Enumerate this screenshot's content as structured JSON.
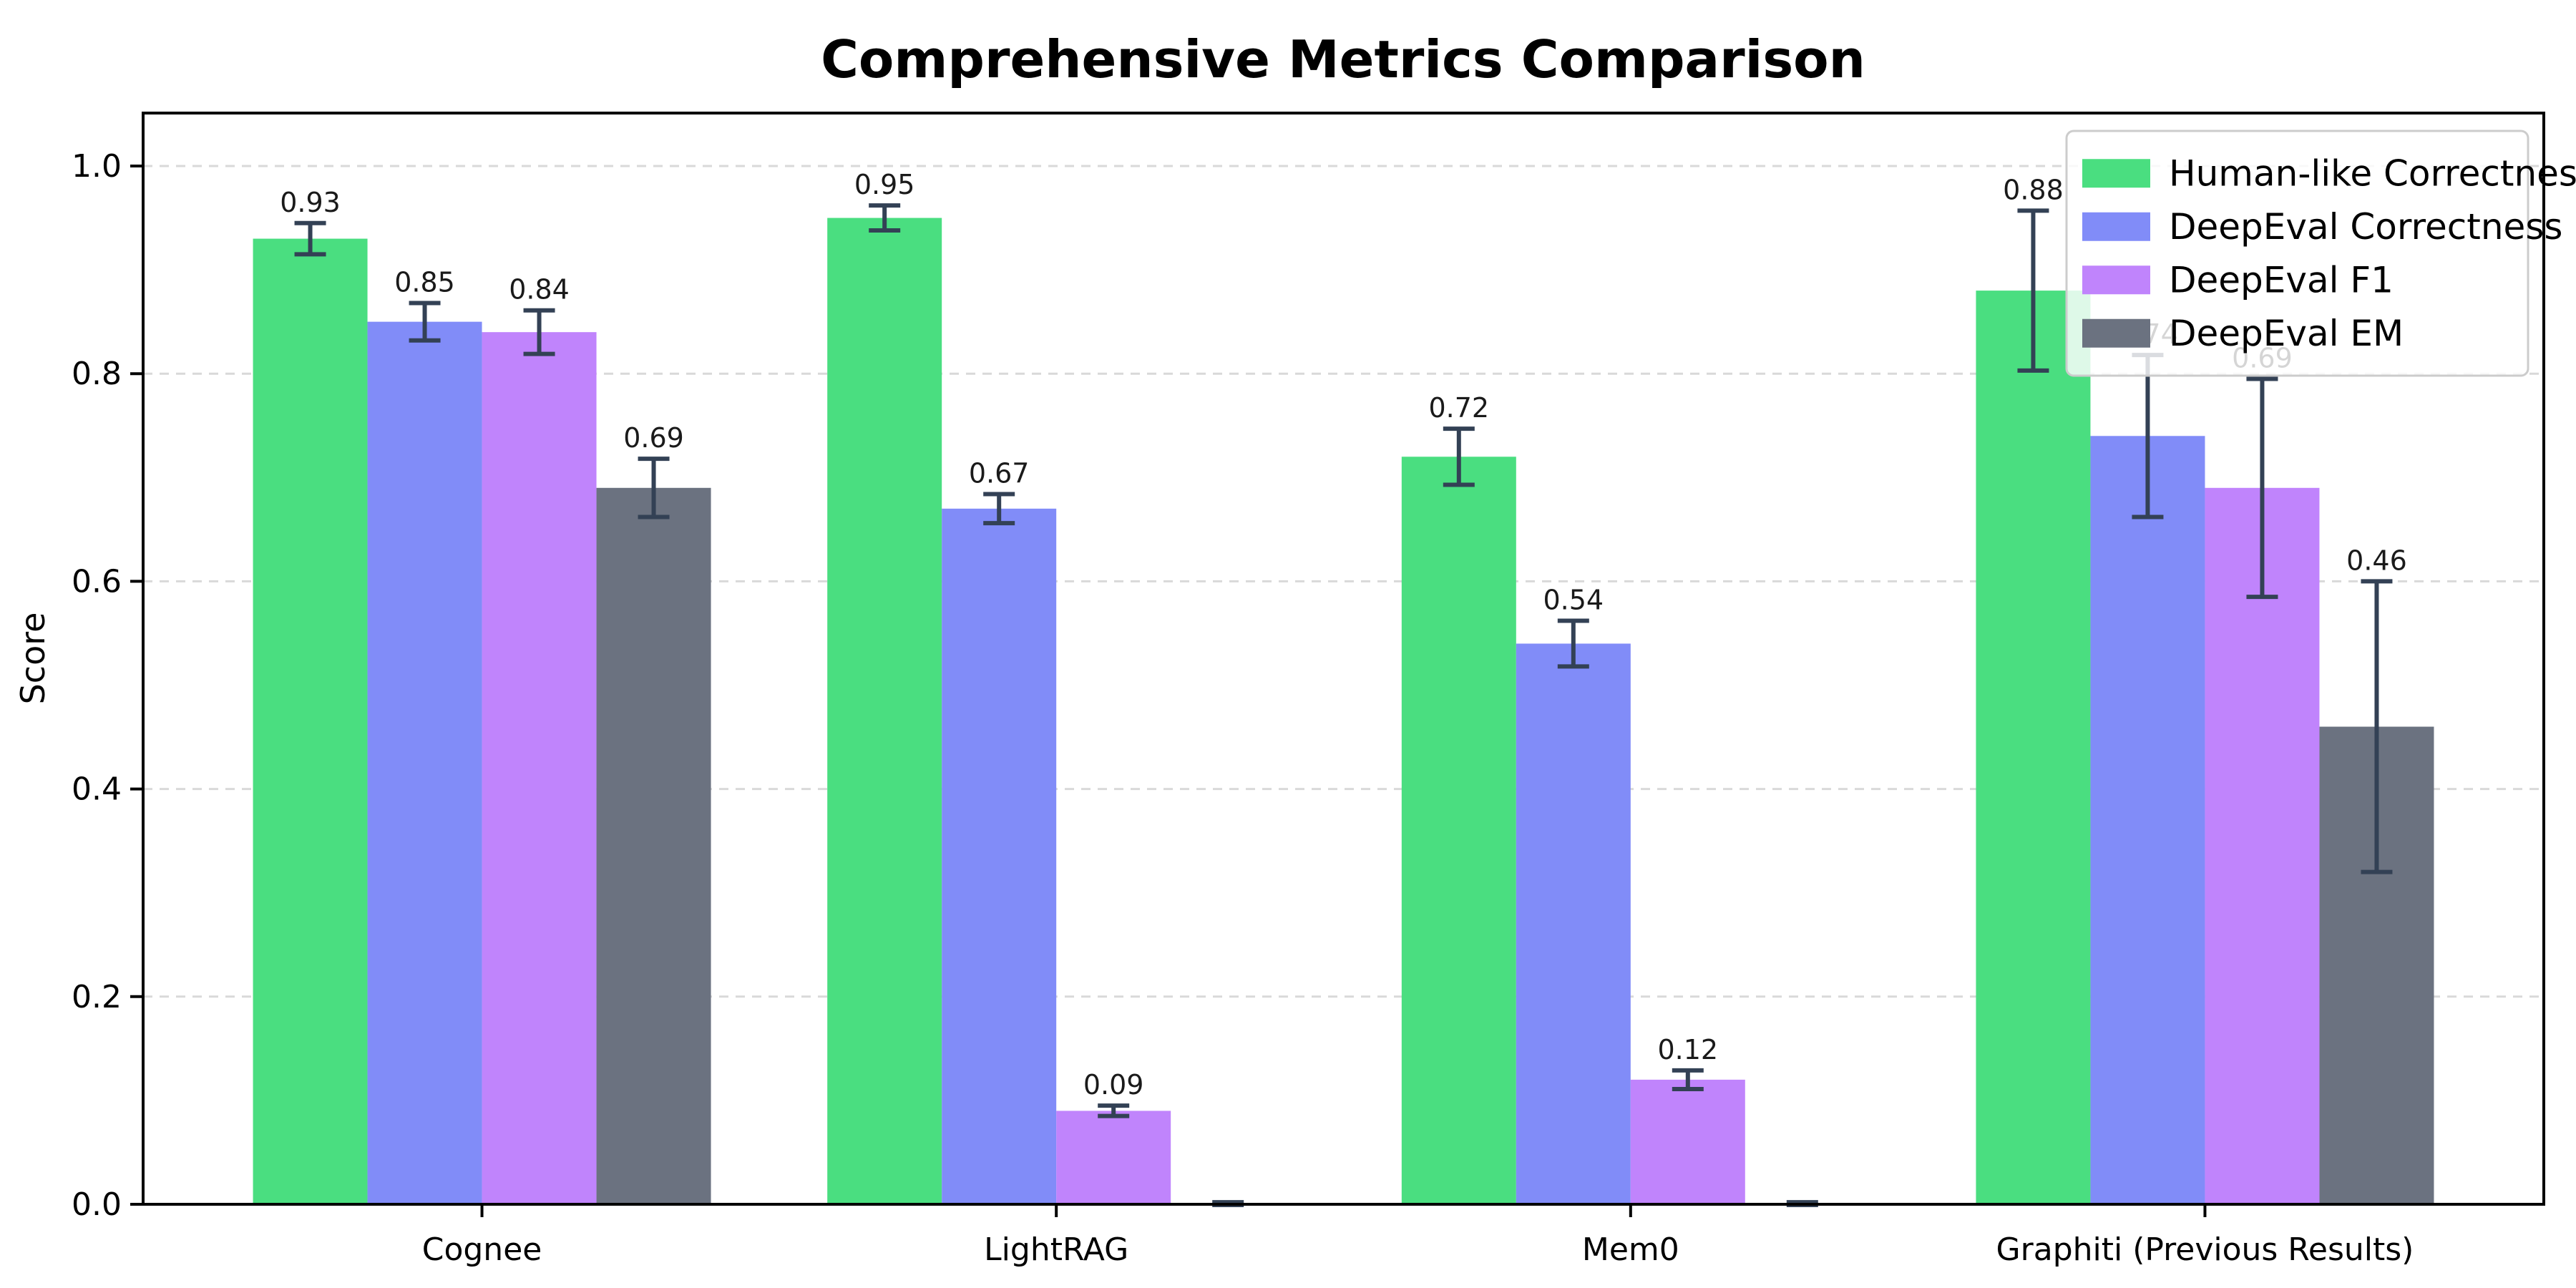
{
  "chart_data": {
    "type": "bar",
    "title": "Comprehensive Metrics Comparison",
    "xlabel": "",
    "ylabel": "Score",
    "categories": [
      "Cognee",
      "LightRAG",
      "Mem0",
      "Graphiti (Previous Results)"
    ],
    "series": [
      {
        "name": "Human-like Correctness",
        "color": "#4ade80",
        "values": [
          0.93,
          0.95,
          0.72,
          0.88
        ],
        "errors": [
          0.015,
          0.012,
          0.027,
          0.077
        ],
        "labels": [
          "0.93",
          "0.95",
          "0.72",
          "0.88"
        ]
      },
      {
        "name": "DeepEval Correctness",
        "color": "#818cf8",
        "values": [
          0.85,
          0.67,
          0.54,
          0.74
        ],
        "errors": [
          0.018,
          0.014,
          0.022,
          0.078
        ],
        "labels": [
          "0.85",
          "0.67",
          "0.54",
          "0.74"
        ]
      },
      {
        "name": "DeepEval F1",
        "color": "#c084fc",
        "values": [
          0.84,
          0.09,
          0.12,
          0.69
        ],
        "errors": [
          0.021,
          0.005,
          0.009,
          0.105
        ],
        "labels": [
          "0.84",
          "0.09",
          "0.12",
          "0.69"
        ]
      },
      {
        "name": "DeepEval EM",
        "color": "#6b7280",
        "values": [
          0.69,
          0.0,
          0.0,
          0.46
        ],
        "errors": [
          0.028,
          0.002,
          0.002,
          0.14
        ],
        "labels": [
          "0.69",
          null,
          null,
          "0.46"
        ]
      }
    ],
    "yticks": [
      "0.0",
      "0.2",
      "0.4",
      "0.6",
      "0.8",
      "1.0"
    ],
    "ylim": [
      0.0,
      1.05
    ],
    "grid": {
      "axis": "y",
      "style": "dashed",
      "color": "#d9d9d9"
    },
    "legend": {
      "position": "upper right"
    },
    "error_bar_color": "#334155",
    "axis_color": "#000000",
    "label_color": "#1a1a1a"
  }
}
